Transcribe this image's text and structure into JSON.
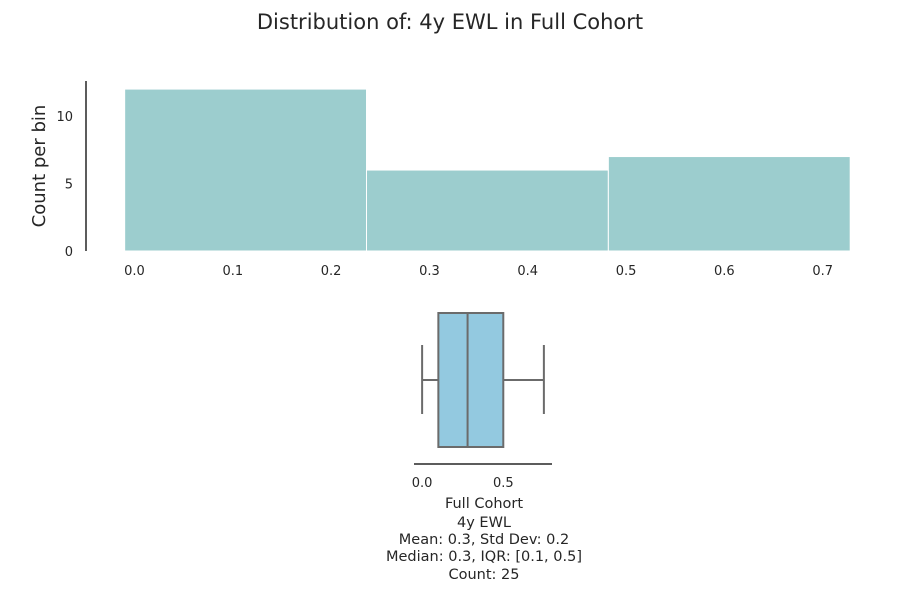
{
  "chart_data": [
    {
      "type": "histogram",
      "title": "Distribution of: 4y EWL in Full Cohort",
      "xlabel": "",
      "ylabel": "Count per bin",
      "bins": [
        {
          "start": -0.01,
          "end": 0.236,
          "count": 12
        },
        {
          "start": 0.236,
          "end": 0.482,
          "count": 6
        },
        {
          "start": 0.482,
          "end": 0.728,
          "count": 7
        }
      ],
      "xlim": [
        -0.03,
        0.74
      ],
      "ylim": [
        0,
        12.6
      ],
      "xticks": [
        0.0,
        0.1,
        0.2,
        0.3,
        0.4,
        0.5,
        0.6,
        0.7
      ],
      "xtick_labels": [
        "0.0",
        "0.1",
        "0.2",
        "0.3",
        "0.4",
        "0.5",
        "0.6",
        "0.7"
      ],
      "yticks": [
        0,
        5,
        10
      ],
      "ytick_labels": [
        "0",
        "5",
        "10"
      ],
      "grid": false,
      "color": "#9ccdce"
    },
    {
      "type": "boxplot",
      "box": {
        "whisker_low": 0.0,
        "q1": 0.1,
        "median": 0.28,
        "q3": 0.5,
        "whisker_high": 0.75
      },
      "xlim": [
        -0.05,
        0.8
      ],
      "xticks": [
        0.0,
        0.5
      ],
      "xtick_labels": [
        "0.0",
        "0.5"
      ],
      "color": "#93c9e0",
      "line_color": "#6b6b6b",
      "stats_lines": [
        "Full Cohort",
        "4y EWL",
        "Mean: 0.3, Std Dev: 0.2",
        "Median: 0.3, IQR: [0.1, 0.5]",
        "Count: 25"
      ]
    }
  ]
}
